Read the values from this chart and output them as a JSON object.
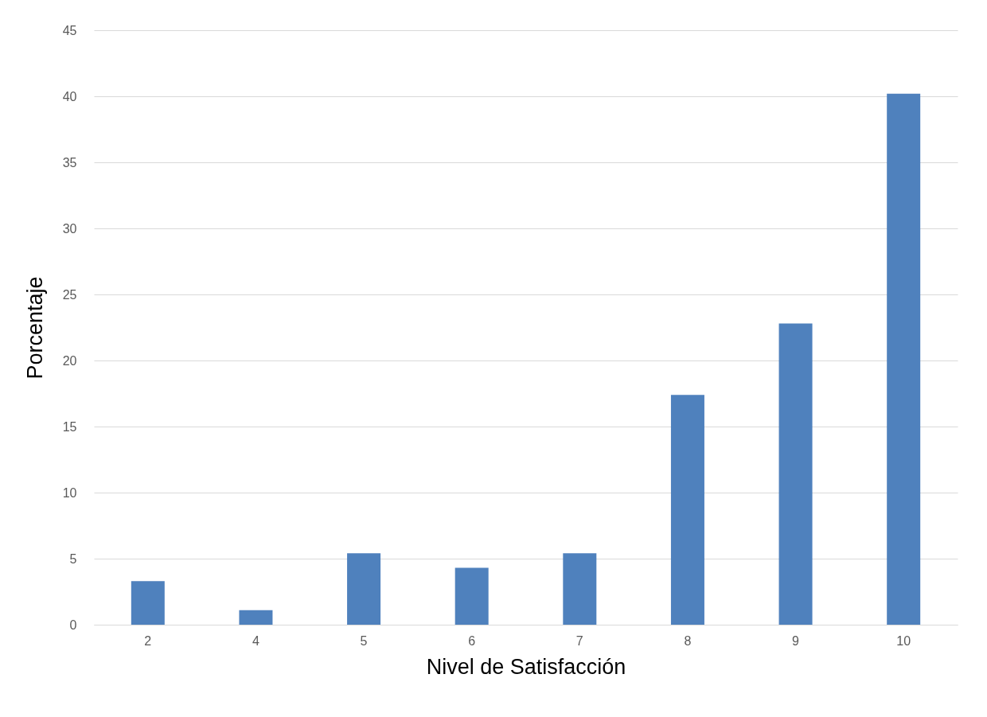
{
  "chart_data": {
    "type": "bar",
    "xlabel": "Nivel de Satisfacción",
    "ylabel": "Porcentaje",
    "categories": [
      "2",
      "4",
      "5",
      "6",
      "7",
      "8",
      "9",
      "10"
    ],
    "values": [
      3.3,
      1.1,
      5.4,
      4.3,
      5.4,
      17.4,
      22.8,
      40.2
    ],
    "color": "#4f81bd",
    "ylim": [
      0,
      45
    ],
    "yticks": [
      0,
      5,
      10,
      15,
      20,
      25,
      30,
      35,
      40,
      45
    ],
    "grid": "y"
  }
}
